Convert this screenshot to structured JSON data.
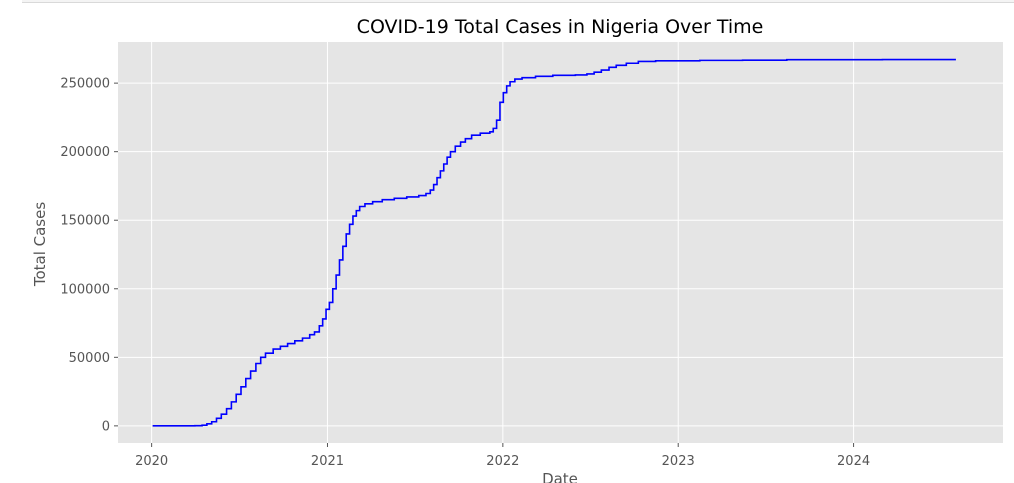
{
  "chart_data": {
    "type": "line",
    "title": "COVID-19 Total Cases in Nigeria Over Time",
    "xlabel": "Date",
    "ylabel": "Total Cases",
    "xlim": [
      "2019-10-23",
      "2024-11-07"
    ],
    "ylim": [
      -12500,
      280000
    ],
    "x_ticks": [
      "2020",
      "2021",
      "2022",
      "2023",
      "2024"
    ],
    "y_ticks": [
      0,
      50000,
      100000,
      150000,
      200000,
      250000
    ],
    "grid": true,
    "line_color": "#0000ff",
    "background_color": "#e5e5e5",
    "series": [
      {
        "name": "",
        "points": [
          [
            "2020-01-03",
            0
          ],
          [
            "2020-02-28",
            0
          ],
          [
            "2020-03-31",
            100
          ],
          [
            "2020-04-15",
            500
          ],
          [
            "2020-04-25",
            1500
          ],
          [
            "2020-05-05",
            3000
          ],
          [
            "2020-05-15",
            5500
          ],
          [
            "2020-05-25",
            8500
          ],
          [
            "2020-06-05",
            12500
          ],
          [
            "2020-06-15",
            17500
          ],
          [
            "2020-06-25",
            23000
          ],
          [
            "2020-07-05",
            28500
          ],
          [
            "2020-07-15",
            34500
          ],
          [
            "2020-07-25",
            40000
          ],
          [
            "2020-08-05",
            45500
          ],
          [
            "2020-08-15",
            50000
          ],
          [
            "2020-08-25",
            53000
          ],
          [
            "2020-09-10",
            56000
          ],
          [
            "2020-09-25",
            58000
          ],
          [
            "2020-10-10",
            60000
          ],
          [
            "2020-10-25",
            62000
          ],
          [
            "2020-11-10",
            64000
          ],
          [
            "2020-11-25",
            66500
          ],
          [
            "2020-12-05",
            68500
          ],
          [
            "2020-12-15",
            73000
          ],
          [
            "2020-12-22",
            78000
          ],
          [
            "2020-12-29",
            85000
          ],
          [
            "2021-01-05",
            90000
          ],
          [
            "2021-01-12",
            100000
          ],
          [
            "2021-01-19",
            110000
          ],
          [
            "2021-01-26",
            121000
          ],
          [
            "2021-02-02",
            131000
          ],
          [
            "2021-02-09",
            140000
          ],
          [
            "2021-02-16",
            147000
          ],
          [
            "2021-02-23",
            153000
          ],
          [
            "2021-03-02",
            157000
          ],
          [
            "2021-03-09",
            160000
          ],
          [
            "2021-03-20",
            162000
          ],
          [
            "2021-04-05",
            163500
          ],
          [
            "2021-04-25",
            165000
          ],
          [
            "2021-05-20",
            166000
          ],
          [
            "2021-06-15",
            167000
          ],
          [
            "2021-07-10",
            168000
          ],
          [
            "2021-07-25",
            169500
          ],
          [
            "2021-08-03",
            172000
          ],
          [
            "2021-08-10",
            176000
          ],
          [
            "2021-08-17",
            181000
          ],
          [
            "2021-08-24",
            186000
          ],
          [
            "2021-08-31",
            191000
          ],
          [
            "2021-09-07",
            196000
          ],
          [
            "2021-09-14",
            200000
          ],
          [
            "2021-09-24",
            204000
          ],
          [
            "2021-10-05",
            207000
          ],
          [
            "2021-10-15",
            209500
          ],
          [
            "2021-10-28",
            212000
          ],
          [
            "2021-11-15",
            213500
          ],
          [
            "2021-12-05",
            214500
          ],
          [
            "2021-12-12",
            217000
          ],
          [
            "2021-12-19",
            223000
          ],
          [
            "2021-12-26",
            236000
          ],
          [
            "2022-01-02",
            243000
          ],
          [
            "2022-01-09",
            248000
          ],
          [
            "2022-01-16",
            251000
          ],
          [
            "2022-01-26",
            253000
          ],
          [
            "2022-02-10",
            254000
          ],
          [
            "2022-03-10",
            255000
          ],
          [
            "2022-04-15",
            255700
          ],
          [
            "2022-06-01",
            256000
          ],
          [
            "2022-06-25",
            256700
          ],
          [
            "2022-07-10",
            258000
          ],
          [
            "2022-07-25",
            259500
          ],
          [
            "2022-08-10",
            261500
          ],
          [
            "2022-08-25",
            263000
          ],
          [
            "2022-09-15",
            264500
          ],
          [
            "2022-10-10",
            265800
          ],
          [
            "2022-11-15",
            266300
          ],
          [
            "2023-02-15",
            266600
          ],
          [
            "2023-05-15",
            266700
          ],
          [
            "2023-08-15",
            267100
          ],
          [
            "2024-03-01",
            267200
          ],
          [
            "2024-08-01",
            267200
          ]
        ]
      }
    ]
  }
}
